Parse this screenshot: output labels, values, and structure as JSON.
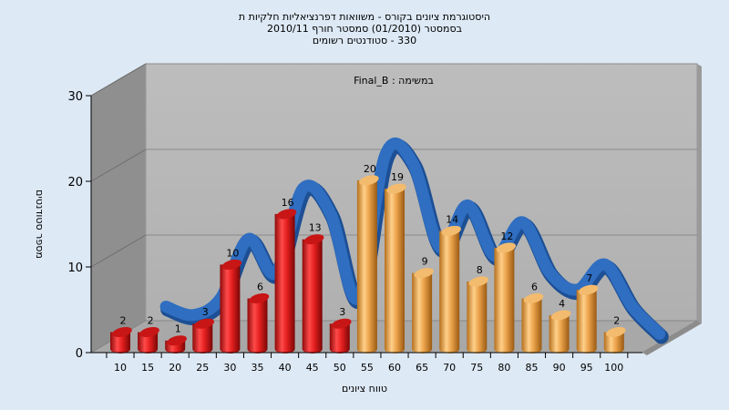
{
  "chart_data": {
    "type": "bar",
    "title_lines": [
      "היסטוגרמת ציונים בקורס - משוואות דפרנציאליות חלקיות ת",
      "בסמסטר  (01/2010)  סמסטר חורף 2010/11",
      "330 - סטודנטים רשומים"
    ],
    "subtitle": "במשימה : Final_B",
    "xlabel": "טווח ציונים",
    "ylabel": "מספר סטודנטים",
    "categories": [
      "10",
      "15",
      "20",
      "25",
      "30",
      "35",
      "40",
      "45",
      "50",
      "55",
      "60",
      "65",
      "70",
      "75",
      "80",
      "85",
      "90",
      "95",
      "100"
    ],
    "values": [
      2,
      2,
      1,
      3,
      10,
      6,
      16,
      13,
      3,
      20,
      19,
      9,
      14,
      8,
      12,
      6,
      4,
      7,
      2
    ],
    "yticks": [
      "0",
      "10",
      "20",
      "30"
    ],
    "ylim": [
      0,
      30
    ],
    "bar_colors": [
      "#e41f1f",
      "#e41f1f",
      "#e41f1f",
      "#e41f1f",
      "#e41f1f",
      "#e41f1f",
      "#e41f1f",
      "#e41f1f",
      "#e41f1f",
      "#eaa24a",
      "#eaa24a",
      "#eaa24a",
      "#eaa24a",
      "#eaa24a",
      "#eaa24a",
      "#eaa24a",
      "#eaa24a",
      "#eaa24a",
      "#eaa24a"
    ],
    "curve_color": "#2f6ec0",
    "grid": true
  }
}
